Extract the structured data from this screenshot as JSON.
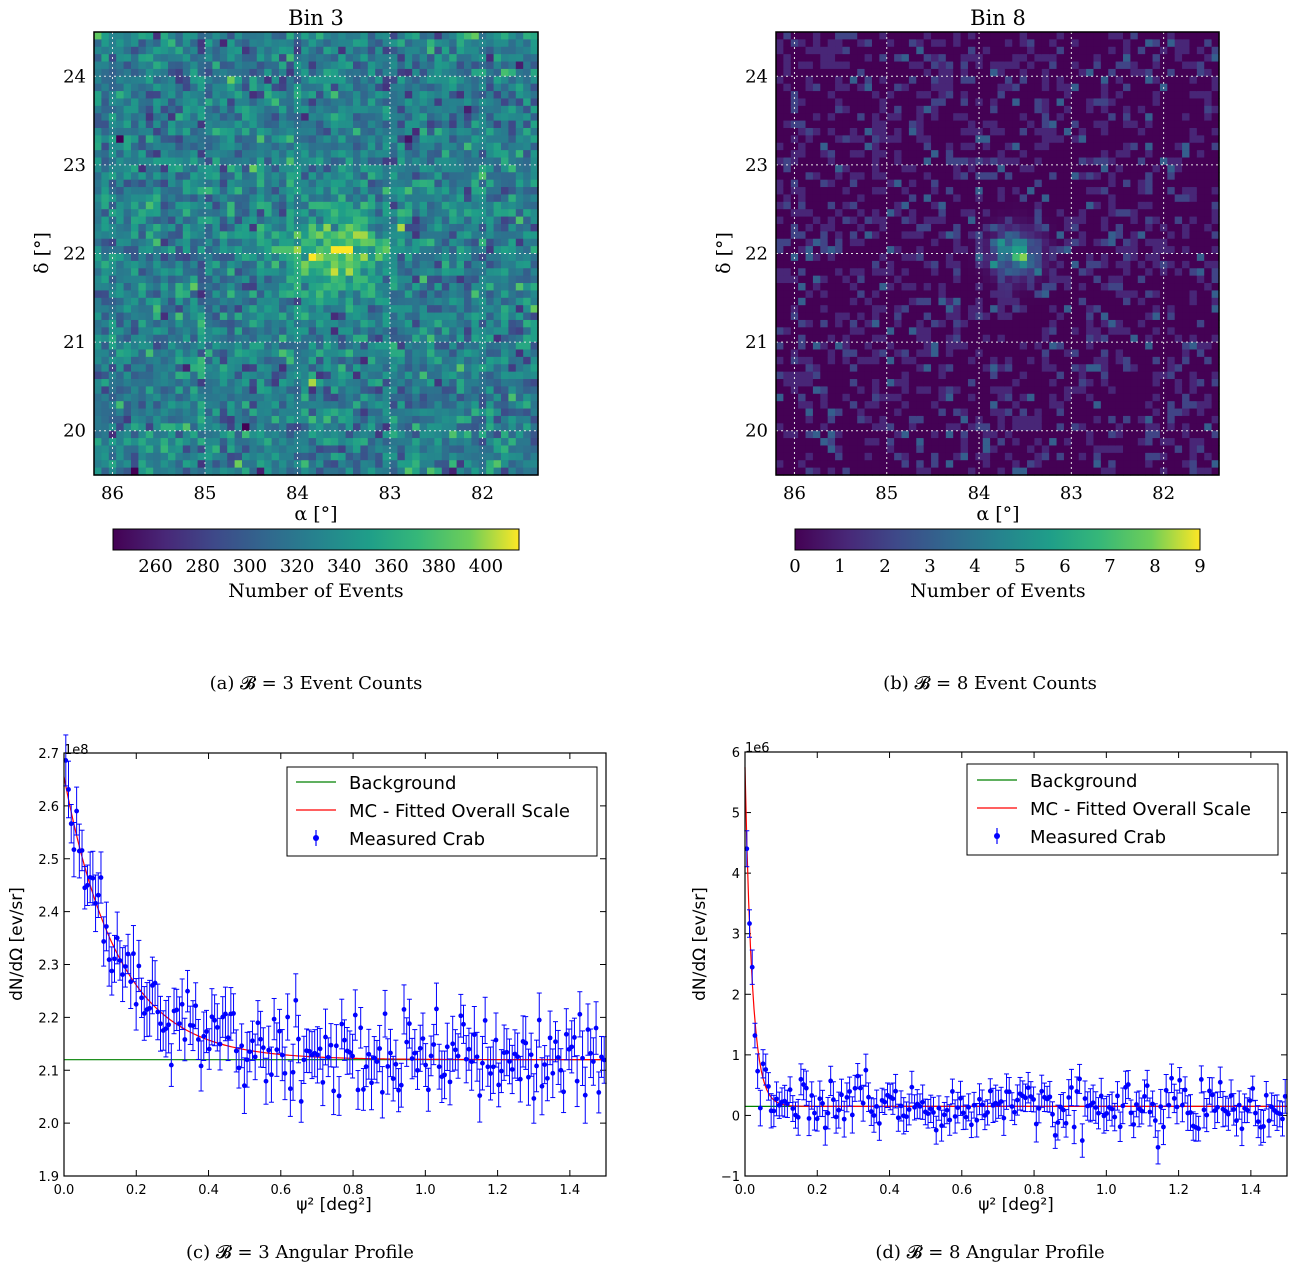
{
  "chart_data": [
    {
      "type": "heatmap",
      "title": "Bin 3",
      "xlabel": "α [°]",
      "ylabel": "δ [°]",
      "xlim": [
        86.2,
        81.4
      ],
      "ylim": [
        19.5,
        24.5
      ],
      "xticks": [
        "86",
        "85",
        "84",
        "83",
        "82"
      ],
      "yticks": [
        "20",
        "21",
        "22",
        "23",
        "24"
      ],
      "grid": true,
      "colormap": "viridis",
      "hotspot": {
        "alpha": 83.6,
        "delta": 22.0
      },
      "colorbar": {
        "label": "Number of Events",
        "range": [
          242,
          414
        ],
        "ticks": [
          "260",
          "280",
          "300",
          "320",
          "340",
          "360",
          "380",
          "400"
        ]
      },
      "caption": "(a) 𝓑 = 3 Event Counts"
    },
    {
      "type": "heatmap",
      "title": "Bin 8",
      "xlabel": "α [°]",
      "ylabel": "δ [°]",
      "xlim": [
        86.2,
        81.4
      ],
      "ylim": [
        19.5,
        24.5
      ],
      "xticks": [
        "86",
        "85",
        "84",
        "83",
        "82"
      ],
      "yticks": [
        "20",
        "21",
        "22",
        "23",
        "24"
      ],
      "grid": true,
      "colormap": "viridis",
      "hotspot": {
        "alpha": 83.6,
        "delta": 22.0
      },
      "colorbar": {
        "label": "Number of Events",
        "range": [
          0,
          9
        ],
        "ticks": [
          "0",
          "1",
          "2",
          "3",
          "4",
          "5",
          "6",
          "7",
          "8",
          "9"
        ]
      },
      "caption": "(b) 𝓑 = 8 Event Counts"
    },
    {
      "type": "line",
      "xlabel": "ψ² [deg²]",
      "ylabel": "dN/dΩ [ev/sr]",
      "scale_label": "1e8",
      "xlim": [
        0.0,
        1.5
      ],
      "ylim": [
        1.9,
        2.7
      ],
      "xticks": [
        "0.0",
        "0.2",
        "0.4",
        "0.6",
        "0.8",
        "1.0",
        "1.2",
        "1.4"
      ],
      "yticks": [
        "1.9",
        "2.0",
        "2.1",
        "2.2",
        "2.3",
        "2.4",
        "2.5",
        "2.6",
        "2.7"
      ],
      "legend_position": "top-right",
      "series": [
        {
          "name": "Background",
          "color": "#008000",
          "model": "constant",
          "value": 2.12
        },
        {
          "name": "MC - Fitted Overall Scale",
          "color": "#ff0000",
          "model": "exponential",
          "base": 2.12,
          "amplitude": 0.535,
          "scale": 0.15
        },
        {
          "name": "Measured Crab",
          "color": "#0000ff",
          "type": "errorbar",
          "points": 200,
          "x_max": 1.49,
          "error": 0.045
        }
      ],
      "caption": "(c) 𝓑 = 3 Angular Profile"
    },
    {
      "type": "line",
      "xlabel": "ψ² [deg²]",
      "ylabel": "dN/dΩ [ev/sr]",
      "scale_label": "1e6",
      "xlim": [
        0.0,
        1.5
      ],
      "ylim": [
        -1,
        6
      ],
      "xticks": [
        "0.0",
        "0.2",
        "0.4",
        "0.6",
        "0.8",
        "1.0",
        "1.2",
        "1.4"
      ],
      "yticks": [
        "−1",
        "0",
        "1",
        "2",
        "3",
        "4",
        "5",
        "6"
      ],
      "legend_position": "top-right",
      "series": [
        {
          "name": "Background",
          "color": "#008000",
          "model": "constant",
          "value": 0.15
        },
        {
          "name": "MC - Fitted Overall Scale",
          "color": "#ff0000",
          "model": "exponential",
          "base": 0.15,
          "amplitude": 5.6,
          "scale": 0.02
        },
        {
          "name": "Measured Crab",
          "color": "#0000ff",
          "type": "errorbar",
          "points": 200,
          "x_max": 1.49,
          "error": 0.25
        }
      ],
      "caption": "(d) 𝓑 = 8 Angular Profile"
    }
  ]
}
